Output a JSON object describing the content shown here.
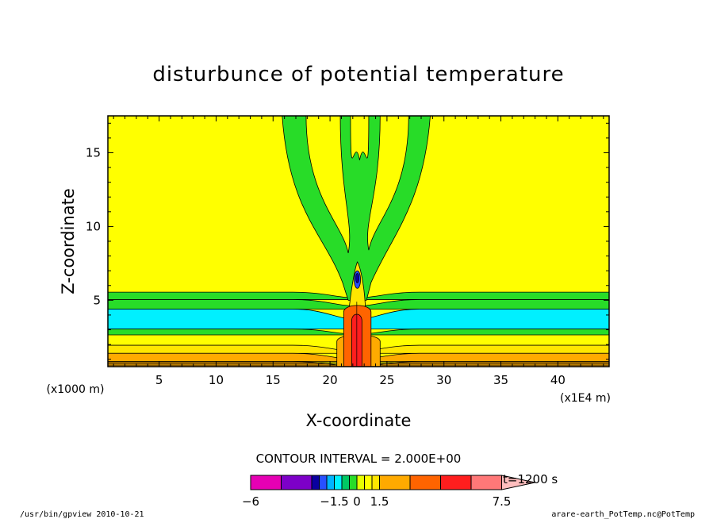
{
  "chart_data": {
    "type": "heatmap",
    "title": "disturbunce of potential temperature",
    "xlabel": "X-coordinate",
    "ylabel": "Z-coordinate",
    "x_unit": "(x1E4 m)",
    "y_unit": "(x1000 m)",
    "xlim": [
      0.5,
      44.5
    ],
    "ylim": [
      0.5,
      17.5
    ],
    "x_ticks": [
      5,
      10,
      15,
      20,
      25,
      30,
      35,
      40
    ],
    "y_ticks": [
      5,
      10,
      15
    ],
    "contour_interval_label": "CONTOUR INTERVAL = 2.000E+00",
    "time_label": "t=1200 s",
    "colorbar": {
      "labels": [
        {
          "value": -6,
          "text": "−6"
        },
        {
          "value": -1.5,
          "text": "−1.5"
        },
        {
          "value": 0,
          "text": "0"
        },
        {
          "value": 1.5,
          "text": "1.5"
        },
        {
          "value": 7.5,
          "text": "7.5"
        }
      ],
      "bins": [
        {
          "from": -6,
          "to": -4.5,
          "color": "#e600b4"
        },
        {
          "from": -4.5,
          "to": -3,
          "color": "#7d00c8"
        },
        {
          "from": -3,
          "to": -2.5,
          "color": "#0a00a0"
        },
        {
          "from": -2.5,
          "to": -2,
          "color": "#2850ff"
        },
        {
          "from": -2,
          "to": -1.5,
          "color": "#00b4ff"
        },
        {
          "from": -1.5,
          "to": -1,
          "color": "#00f0ff"
        },
        {
          "from": -1,
          "to": -0.5,
          "color": "#00c864"
        },
        {
          "from": -0.5,
          "to": 0,
          "color": "#28dc28"
        },
        {
          "from": 0,
          "to": 0.5,
          "color": "#e6ff00"
        },
        {
          "from": 0.5,
          "to": 1,
          "color": "#ffff00"
        },
        {
          "from": 1,
          "to": 1.5,
          "color": "#ffe600"
        },
        {
          "from": 1.5,
          "to": 3,
          "color": "#ffaa00"
        },
        {
          "from": 3,
          "to": 4.5,
          "color": "#ff6400"
        },
        {
          "from": 4.5,
          "to": 6,
          "color": "#ff1e1e"
        },
        {
          "from": 6,
          "to": 7.5,
          "color": "#ff7878"
        },
        {
          "from": 7.5,
          "to": 9,
          "color": "#ffbebe"
        }
      ]
    },
    "fields": {
      "background_color": "#ffff00",
      "layers": [
        {
          "z_from": 5.05,
          "z_to": 5.55,
          "color": "#28dc28"
        },
        {
          "z_from": 4.4,
          "z_to": 5.05,
          "color": "#28dc28"
        },
        {
          "z_from": 3.05,
          "z_to": 4.4,
          "color": "#00f0ff"
        },
        {
          "z_from": 2.65,
          "z_to": 3.05,
          "color": "#28dc28"
        },
        {
          "z_from": 1.4,
          "z_to": 1.95,
          "color": "#ffe600"
        },
        {
          "z_from": 0.85,
          "z_to": 1.4,
          "color": "#ffaa00"
        },
        {
          "z_from": 0.5,
          "z_to": 0.85,
          "color": "#ffaa00"
        }
      ],
      "plume_core_x": 22.3,
      "plume_top_z": 7.6
    }
  },
  "footer": {
    "left": "/usr/bin/gpview   2010-10-21",
    "right": "arare-earth_PotTemp.nc@PotTemp"
  }
}
